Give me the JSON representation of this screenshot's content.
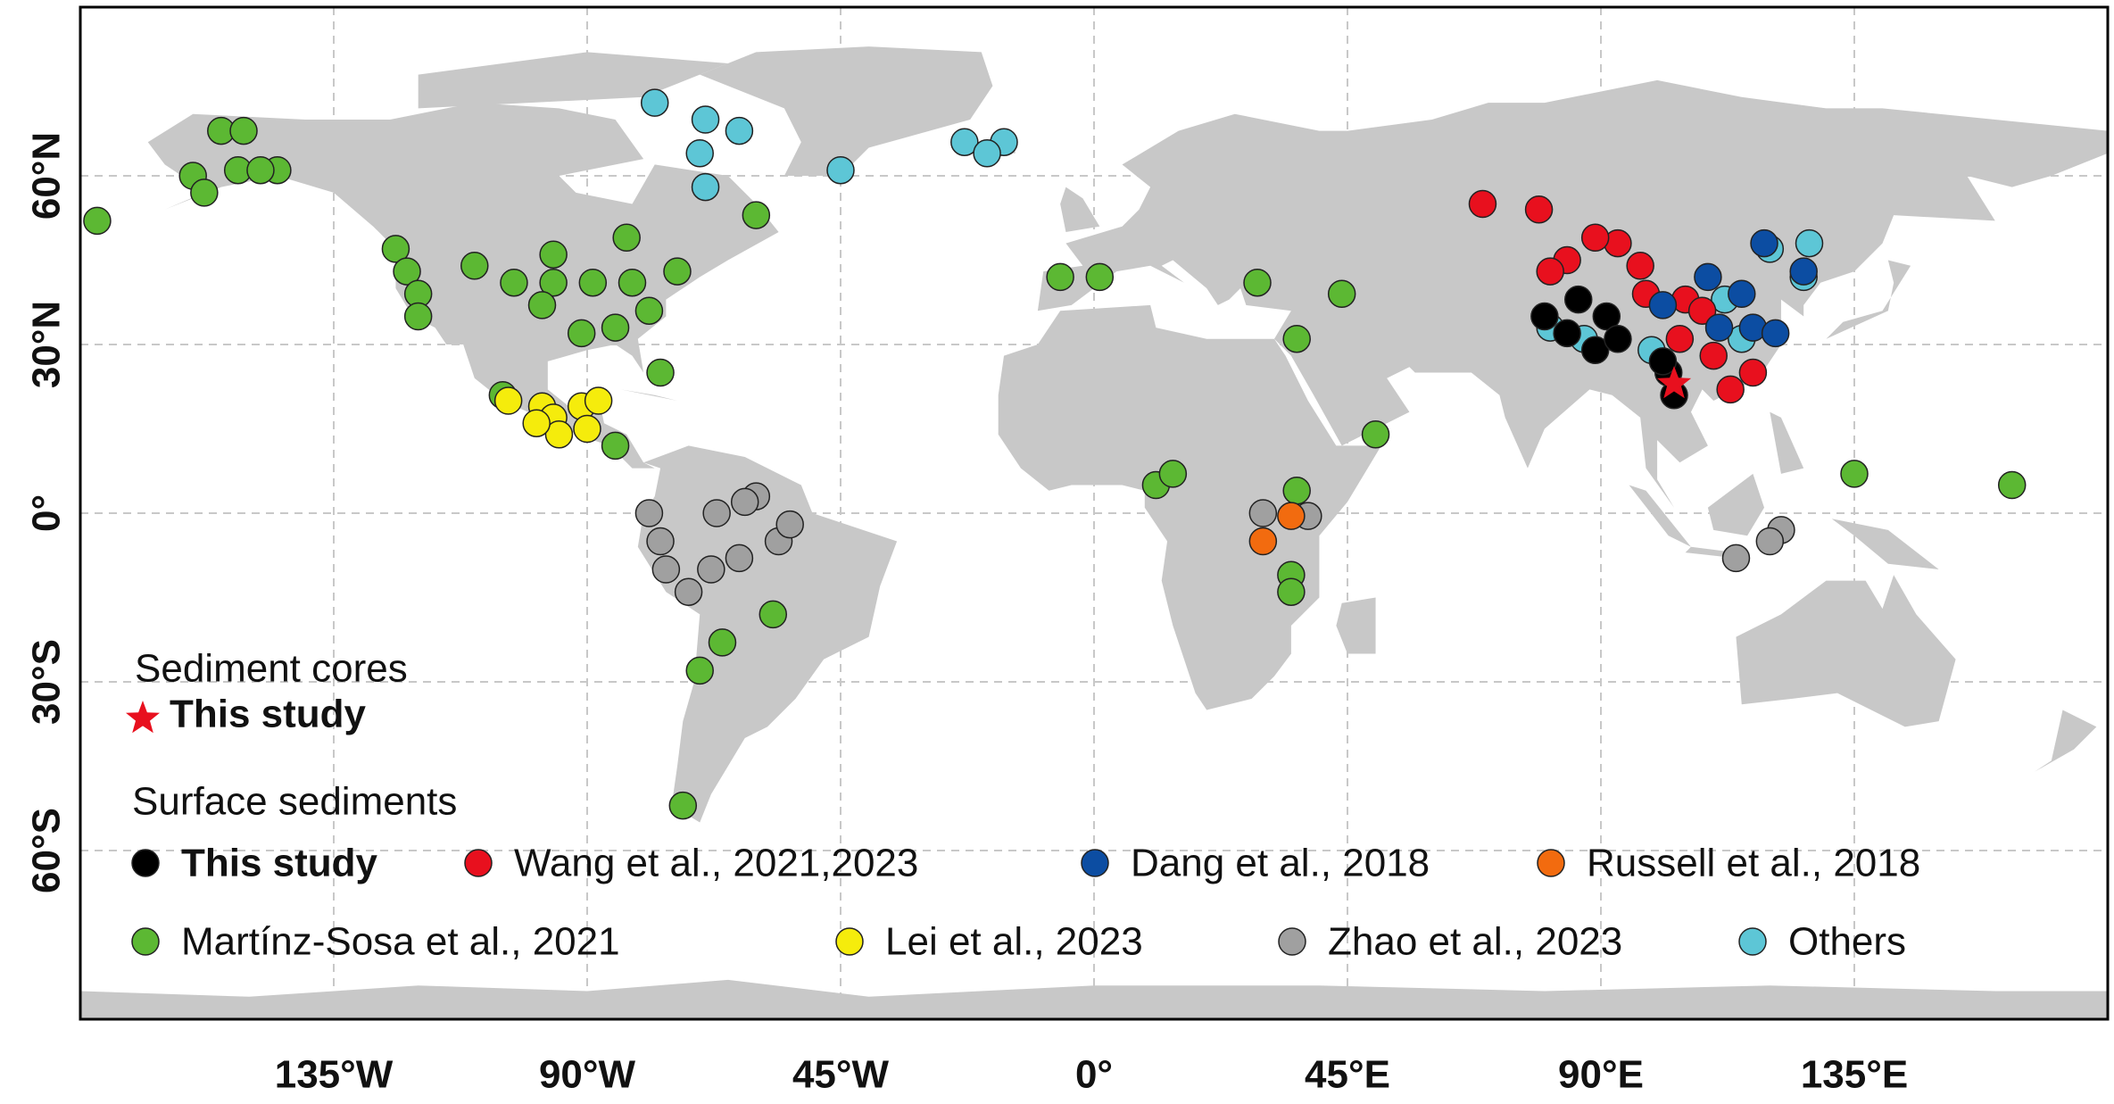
{
  "chart_data": {
    "type": "scatter",
    "xlim": [
      -180,
      180
    ],
    "ylim": [
      -90,
      90
    ],
    "xticks": [
      {
        "value": -135,
        "label": "135°W"
      },
      {
        "value": -90,
        "label": "90°W"
      },
      {
        "value": -45,
        "label": "45°W"
      },
      {
        "value": 0,
        "label": "0°"
      },
      {
        "value": 45,
        "label": "45°E"
      },
      {
        "value": 90,
        "label": "90°E"
      },
      {
        "value": 135,
        "label": "135°E"
      }
    ],
    "yticks": [
      {
        "value": -60,
        "label": "60°S"
      },
      {
        "value": -30,
        "label": "30°S"
      },
      {
        "value": 0,
        "label": "0°"
      },
      {
        "value": 30,
        "label": "30°N"
      },
      {
        "value": 60,
        "label": "60°N"
      }
    ],
    "grid": true,
    "cores": {
      "title": "Sediment cores",
      "name": "This study",
      "color": "#e8101e",
      "x": [
        103
      ],
      "y": [
        23
      ]
    },
    "series_title": "Surface sediments",
    "series": [
      {
        "name": "This study",
        "color": "#000000",
        "x": [
          80,
          84,
          89,
          91,
          93,
          102,
          103,
          86,
          101
        ],
        "y": [
          35,
          32,
          29,
          35,
          31,
          25,
          21,
          38,
          27
        ]
      },
      {
        "name": "Wang et al., 2021,2023",
        "color": "#e8101e",
        "x": [
          69,
          79,
          84,
          93,
          89,
          98,
          105,
          110,
          113,
          117,
          108,
          104,
          97,
          81
        ],
        "y": [
          55,
          54,
          45,
          48,
          49,
          39,
          38,
          28,
          22,
          25,
          36,
          31,
          44,
          43
        ]
      },
      {
        "name": "Dang et al., 2018",
        "color": "#0c4da2",
        "x": [
          109,
          115,
          119,
          126,
          117,
          121,
          111,
          101
        ],
        "y": [
          42,
          39,
          48,
          43,
          33,
          32,
          33,
          37
        ]
      },
      {
        "name": "Russell et al., 2018",
        "color": "#f26b0f",
        "x": [
          30,
          35
        ],
        "y": [
          -5,
          -0.5
        ]
      },
      {
        "name": "Martínz-Sosa et al., 2021",
        "color": "#5cb833",
        "x": [
          -177,
          -155,
          -151,
          -160,
          -158,
          -152,
          -145,
          -148,
          -124,
          -122,
          -120,
          -120,
          -110,
          -103,
          -96,
          -89,
          -82,
          -74,
          -96,
          -83,
          -98,
          -91,
          -85,
          -79,
          -77,
          -105,
          -85,
          -60,
          -57,
          -66,
          -70,
          -73,
          -6,
          1,
          29,
          44,
          36,
          50,
          11,
          14,
          36,
          35,
          35,
          135,
          163
        ],
        "y": [
          52,
          68,
          68,
          60,
          57,
          61,
          61,
          61,
          47,
          43,
          39,
          35,
          44,
          41,
          41,
          41,
          41,
          43,
          46,
          49,
          37,
          32,
          33,
          36,
          25,
          21,
          12,
          53,
          -18,
          -23,
          -28,
          -52,
          42,
          42,
          41,
          39,
          31,
          14,
          5,
          7,
          4,
          -11,
          -14,
          7,
          5
        ]
      },
      {
        "name": "Lei et al., 2023",
        "color": "#f5ec0c",
        "x": [
          -104,
          -98,
          -96,
          -91,
          -90,
          -88,
          -95,
          -99
        ],
        "y": [
          20,
          19,
          17,
          19,
          15,
          20,
          14,
          16
        ]
      },
      {
        "name": "Zhao et al., 2023",
        "color": "#a0a0a0",
        "x": [
          -79,
          -77,
          -76,
          -72,
          -67,
          -60,
          -62,
          -63,
          -68,
          -56,
          -54,
          30,
          38,
          114,
          122,
          120
        ],
        "y": [
          0,
          -5,
          -10,
          -14,
          0,
          3,
          2,
          -8,
          -10,
          -5,
          -2,
          0,
          -0.5,
          -8,
          -3,
          -5
        ]
      },
      {
        "name": "Others",
        "color": "#5dc6d6",
        "x": [
          -78,
          -69,
          -63,
          -70,
          -69,
          -45,
          -23,
          -16,
          -19,
          81,
          87,
          99,
          112,
          120,
          127,
          126,
          115
        ],
        "y": [
          73,
          70,
          68,
          64,
          58,
          61,
          66,
          66,
          64,
          33,
          31,
          29,
          38,
          47,
          48,
          42,
          31
        ]
      }
    ]
  }
}
